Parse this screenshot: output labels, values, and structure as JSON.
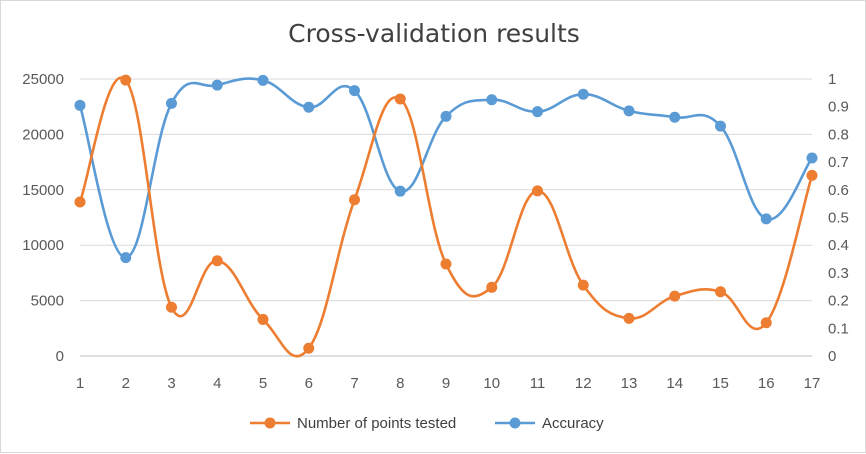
{
  "chart_data": {
    "type": "line",
    "title": "Cross-validation results",
    "x": [
      "1",
      "2",
      "3",
      "4",
      "5",
      "6",
      "7",
      "8",
      "9",
      "10",
      "11",
      "12",
      "13",
      "14",
      "15",
      "16",
      "17"
    ],
    "series": [
      {
        "name": "Number of points tested",
        "axis": "left",
        "color": "#ed7d31",
        "values": [
          13900,
          24900,
          4400,
          8600,
          3300,
          700,
          14100,
          23200,
          8300,
          6200,
          14900,
          6400,
          3400,
          5400,
          5800,
          3000,
          16300
        ]
      },
      {
        "name": "Accuracy",
        "axis": "right",
        "color": "#5b9bd5",
        "values": [
          0.905,
          0.355,
          0.912,
          0.978,
          0.995,
          0.898,
          0.958,
          0.595,
          0.865,
          0.925,
          0.882,
          0.945,
          0.885,
          0.862,
          0.83,
          0.495,
          0.715
        ]
      }
    ],
    "y_left": {
      "ticks": [
        "0",
        "5000",
        "10000",
        "15000",
        "20000",
        "25000"
      ],
      "ylim": [
        0,
        25000
      ]
    },
    "y_right": {
      "ticks": [
        "0",
        "0.1",
        "0.2",
        "0.3",
        "0.4",
        "0.5",
        "0.6",
        "0.7",
        "0.8",
        "0.9",
        "1"
      ],
      "ylim": [
        0,
        1
      ]
    },
    "grid": true,
    "legend_position": "bottom",
    "smooth": true
  }
}
